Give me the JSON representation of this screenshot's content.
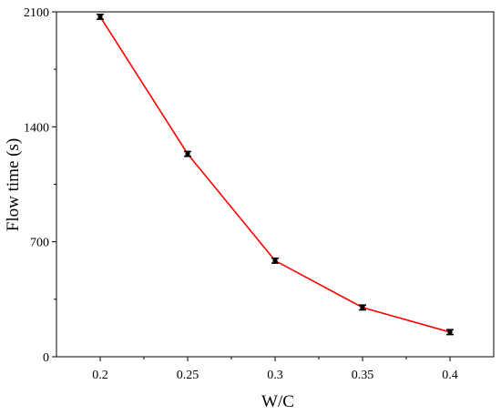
{
  "chart_data": {
    "type": "line",
    "title": "",
    "xlabel": "W/C",
    "ylabel": "Flow time (s)",
    "x": [
      0.2,
      0.25,
      0.3,
      0.35,
      0.4
    ],
    "x_tick_labels": [
      "0.2",
      "0.25",
      "0.3",
      "0.35",
      "0.4"
    ],
    "xlim": [
      0.175,
      0.425
    ],
    "ylim": [
      0,
      2100
    ],
    "y_ticks": [
      0,
      700,
      1400,
      2100
    ],
    "y_tick_labels": [
      "0",
      "700",
      "1400",
      "2100"
    ],
    "series": [
      {
        "values": [
          2070,
          1235,
          585,
          300,
          150
        ],
        "errors": [
          15,
          15,
          15,
          15,
          15
        ],
        "line_color": "#ff0000",
        "marker_color": "#000000"
      }
    ],
    "grid": false,
    "legend": "none"
  }
}
